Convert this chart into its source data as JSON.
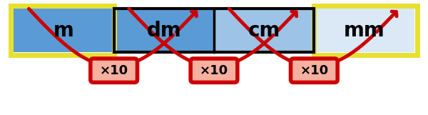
{
  "cells": [
    "m",
    "dm",
    "cm",
    "mm"
  ],
  "cell_colors": [
    "#5B9BD5",
    "#5B9BD5",
    "#9DC3E6",
    "#DAE9F5"
  ],
  "cell_text_color": "#000000",
  "cell_font_size": 20,
  "cell_font_weight": "bold",
  "outer_border_color": "#E8E030",
  "outer_border_lw": 5,
  "inner_border_color": "#000000",
  "inner_border_lw": 2.5,
  "m_border_color": "#E8E030",
  "mm_border_color": "#E8E030",
  "arrow_color": "#CC0000",
  "arrow_badge_face": "#F5B0A0",
  "arrow_badge_edge": "#CC0000",
  "arrow_label": "×10",
  "arrow_label_fontsize": 13,
  "arrow_label_fontweight": "bold",
  "background_color": "#FFFFFF",
  "fig_width": 6.0,
  "fig_height": 1.61
}
